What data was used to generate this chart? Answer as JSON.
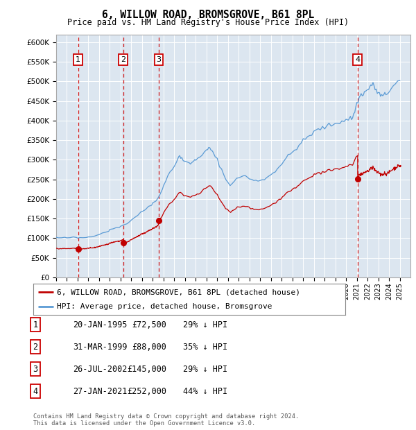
{
  "title": "6, WILLOW ROAD, BROMSGROVE, B61 8PL",
  "subtitle": "Price paid vs. HM Land Registry's House Price Index (HPI)",
  "ylabel_ticks": [
    "£0",
    "£50K",
    "£100K",
    "£150K",
    "£200K",
    "£250K",
    "£300K",
    "£350K",
    "£400K",
    "£450K",
    "£500K",
    "£550K",
    "£600K"
  ],
  "ytick_values": [
    0,
    50000,
    100000,
    150000,
    200000,
    250000,
    300000,
    350000,
    400000,
    450000,
    500000,
    550000,
    600000
  ],
  "ylim": [
    0,
    620000
  ],
  "xlim_start": 1993.0,
  "xlim_end": 2026.0,
  "background_color": "#dce6f0",
  "hpi_line_color": "#5b9bd5",
  "price_line_color": "#c00000",
  "purchases": [
    {
      "label": 1,
      "date_num": 1995.05,
      "price": 72500
    },
    {
      "label": 2,
      "date_num": 1999.25,
      "price": 88000
    },
    {
      "label": 3,
      "date_num": 2002.56,
      "price": 145000
    },
    {
      "label": 4,
      "date_num": 2021.07,
      "price": 252000
    }
  ],
  "legend_entries": [
    "6, WILLOW ROAD, BROMSGROVE, B61 8PL (detached house)",
    "HPI: Average price, detached house, Bromsgrove"
  ],
  "table_rows": [
    [
      "1",
      "20-JAN-1995",
      "£72,500",
      "29% ↓ HPI"
    ],
    [
      "2",
      "31-MAR-1999",
      "£88,000",
      "35% ↓ HPI"
    ],
    [
      "3",
      "26-JUL-2002",
      "£145,000",
      "29% ↓ HPI"
    ],
    [
      "4",
      "27-JAN-2021",
      "£252,000",
      "44% ↓ HPI"
    ]
  ],
  "footer": "Contains HM Land Registry data © Crown copyright and database right 2024.\nThis data is licensed under the Open Government Licence v3.0."
}
